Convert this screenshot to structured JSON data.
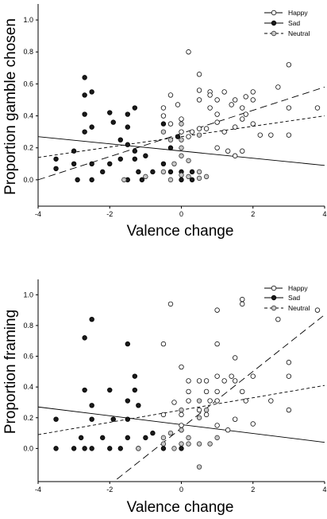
{
  "chart_data": [
    {
      "type": "scatter",
      "xlabel": "Valence change",
      "ylabel": "Proportion gamble chosen",
      "xlim": [
        -4,
        4
      ],
      "ylim": [
        -0.15,
        1.1
      ],
      "xticks": [
        -4,
        -2,
        0,
        2,
        4
      ],
      "yticks": [
        0.0,
        0.2,
        0.4,
        0.6,
        0.8,
        1.0
      ],
      "xtick_labels": [
        "-4",
        "-2",
        "0",
        "2",
        "4"
      ],
      "ytick_labels": [
        "0.0",
        "0.2",
        "0.4",
        "0.6",
        "0.8",
        "1.0"
      ],
      "grid": false,
      "legend_position": "top-right",
      "series": [
        {
          "name": "Happy",
          "marker": "open-circle",
          "color": "#ffffff",
          "line_style": "long-dash",
          "trend": {
            "x": [
              -4,
              4
            ],
            "y": [
              0.0,
              0.58
            ]
          },
          "points": [
            [
              -0.5,
              0.45
            ],
            [
              -0.5,
              0.4
            ],
            [
              -0.3,
              0.53
            ],
            [
              -0.3,
              0.35
            ],
            [
              -0.1,
              0.47
            ],
            [
              0.0,
              0.38
            ],
            [
              0.0,
              0.3
            ],
            [
              0.2,
              0.8
            ],
            [
              0.2,
              0.27
            ],
            [
              0.3,
              0.3
            ],
            [
              0.5,
              0.66
            ],
            [
              0.5,
              0.56
            ],
            [
              0.5,
              0.5
            ],
            [
              0.5,
              0.32
            ],
            [
              0.7,
              0.32
            ],
            [
              0.8,
              0.55
            ],
            [
              0.8,
              0.53
            ],
            [
              0.8,
              0.45
            ],
            [
              1.0,
              0.5
            ],
            [
              1.0,
              0.41
            ],
            [
              1.0,
              0.36
            ],
            [
              1.0,
              0.2
            ],
            [
              1.2,
              0.55
            ],
            [
              1.2,
              0.3
            ],
            [
              1.3,
              0.18
            ],
            [
              1.4,
              0.47
            ],
            [
              1.5,
              0.5
            ],
            [
              1.5,
              0.33
            ],
            [
              1.5,
              0.15
            ],
            [
              1.7,
              0.45
            ],
            [
              1.7,
              0.38
            ],
            [
              1.7,
              0.18
            ],
            [
              1.8,
              0.52
            ],
            [
              1.8,
              0.41
            ],
            [
              2.0,
              0.55
            ],
            [
              2.0,
              0.5
            ],
            [
              2.0,
              0.35
            ],
            [
              2.2,
              0.28
            ],
            [
              2.5,
              0.28
            ],
            [
              2.7,
              0.58
            ],
            [
              3.0,
              0.72
            ],
            [
              3.0,
              0.45
            ],
            [
              3.0,
              0.28
            ],
            [
              3.8,
              0.45
            ]
          ]
        },
        {
          "name": "Sad",
          "marker": "filled-circle",
          "color": "#1a1a1a",
          "line_style": "solid",
          "trend": {
            "x": [
              -4,
              4
            ],
            "y": [
              0.27,
              0.09
            ]
          },
          "points": [
            [
              -3.5,
              0.13
            ],
            [
              -3.5,
              0.07
            ],
            [
              -3.0,
              0.18
            ],
            [
              -3.0,
              0.1
            ],
            [
              -2.9,
              0.0
            ],
            [
              -2.7,
              0.64
            ],
            [
              -2.7,
              0.53
            ],
            [
              -2.7,
              0.41
            ],
            [
              -2.7,
              0.3
            ],
            [
              -2.5,
              0.55
            ],
            [
              -2.5,
              0.33
            ],
            [
              -2.5,
              0.1
            ],
            [
              -2.5,
              0.0
            ],
            [
              -2.2,
              0.05
            ],
            [
              -2.0,
              0.42
            ],
            [
              -2.0,
              0.1
            ],
            [
              -1.9,
              0.36
            ],
            [
              -1.7,
              0.25
            ],
            [
              -1.7,
              0.13
            ],
            [
              -1.5,
              0.41
            ],
            [
              -1.5,
              0.33
            ],
            [
              -1.5,
              0.22
            ],
            [
              -1.5,
              0.0
            ],
            [
              -1.3,
              0.45
            ],
            [
              -1.3,
              0.18
            ],
            [
              -1.3,
              0.13
            ],
            [
              -1.2,
              0.05
            ],
            [
              -1.1,
              0.0
            ],
            [
              -1.0,
              0.15
            ],
            [
              -0.8,
              0.05
            ],
            [
              -0.5,
              0.35
            ],
            [
              -0.5,
              0.1
            ],
            [
              -0.3,
              0.2
            ],
            [
              -0.3,
              0.05
            ],
            [
              -0.1,
              0.27
            ],
            [
              0.0,
              0.05
            ],
            [
              0.0,
              0.0
            ],
            [
              0.3,
              0.05
            ],
            [
              0.3,
              0.0
            ]
          ]
        },
        {
          "name": "Neutral",
          "marker": "gray-circle",
          "color": "#c8c8c8",
          "line_style": "short-dash",
          "trend": {
            "x": [
              -4,
              4
            ],
            "y": [
              0.14,
              0.4
            ]
          },
          "points": [
            [
              -1.6,
              0.0
            ],
            [
              -1.0,
              0.02
            ],
            [
              -0.5,
              0.3
            ],
            [
              -0.5,
              0.05
            ],
            [
              -0.3,
              0.25
            ],
            [
              -0.3,
              0.0
            ],
            [
              -0.2,
              0.1
            ],
            [
              0.0,
              0.35
            ],
            [
              0.0,
              0.25
            ],
            [
              0.0,
              0.2
            ],
            [
              0.0,
              0.15
            ],
            [
              0.0,
              0.03
            ],
            [
              0.2,
              0.12
            ],
            [
              0.2,
              0.02
            ],
            [
              0.5,
              0.28
            ],
            [
              0.5,
              0.05
            ],
            [
              0.5,
              0.01
            ],
            [
              0.7,
              0.02
            ]
          ]
        }
      ]
    },
    {
      "type": "scatter",
      "xlabel": "Valence change",
      "ylabel": "Proportion framing",
      "xlim": [
        -4,
        4
      ],
      "ylim": [
        -0.2,
        1.1
      ],
      "xticks": [
        -4,
        -2,
        0,
        2,
        4
      ],
      "yticks": [
        0.0,
        0.2,
        0.4,
        0.6,
        0.8,
        1.0
      ],
      "xtick_labels": [
        "-4",
        "-2",
        "0",
        "2",
        "4"
      ],
      "ytick_labels": [
        "0.0",
        "0.2",
        "0.4",
        "0.6",
        "0.8",
        "1.0"
      ],
      "grid": false,
      "legend_position": "top-right",
      "series": [
        {
          "name": "Happy",
          "marker": "open-circle",
          "color": "#ffffff",
          "line_style": "long-dash",
          "trend": {
            "x": [
              -1.8,
              4
            ],
            "y": [
              -0.2,
              0.87
            ]
          },
          "points": [
            [
              -0.5,
              0.68
            ],
            [
              -0.5,
              0.22
            ],
            [
              -0.3,
              0.94
            ],
            [
              -0.2,
              0.3
            ],
            [
              0.0,
              0.53
            ],
            [
              0.0,
              0.22
            ],
            [
              0.0,
              0.15
            ],
            [
              0.2,
              0.44
            ],
            [
              0.2,
              0.37
            ],
            [
              0.2,
              0.31
            ],
            [
              0.5,
              0.44
            ],
            [
              0.5,
              0.25
            ],
            [
              0.7,
              0.44
            ],
            [
              0.7,
              0.37
            ],
            [
              0.7,
              0.22
            ],
            [
              0.8,
              0.31
            ],
            [
              1.0,
              0.9
            ],
            [
              1.0,
              0.68
            ],
            [
              1.0,
              0.47
            ],
            [
              1.0,
              0.37
            ],
            [
              1.0,
              0.31
            ],
            [
              1.0,
              0.15
            ],
            [
              1.2,
              0.44
            ],
            [
              1.3,
              0.12
            ],
            [
              1.4,
              0.47
            ],
            [
              1.5,
              0.59
            ],
            [
              1.5,
              0.44
            ],
            [
              1.5,
              0.19
            ],
            [
              1.7,
              0.97
            ],
            [
              1.7,
              0.94
            ],
            [
              1.7,
              0.37
            ],
            [
              1.8,
              0.31
            ],
            [
              2.0,
              0.47
            ],
            [
              2.0,
              0.16
            ],
            [
              2.5,
              0.31
            ],
            [
              2.7,
              0.84
            ],
            [
              3.0,
              0.56
            ],
            [
              3.0,
              0.47
            ],
            [
              3.0,
              0.25
            ],
            [
              3.8,
              0.9
            ]
          ]
        },
        {
          "name": "Sad",
          "marker": "filled-circle",
          "color": "#1a1a1a",
          "line_style": "solid",
          "trend": {
            "x": [
              -4,
              4
            ],
            "y": [
              0.27,
              0.04
            ]
          },
          "points": [
            [
              -3.5,
              0.19
            ],
            [
              -3.5,
              0.0
            ],
            [
              -3.0,
              0.0
            ],
            [
              -2.8,
              0.07
            ],
            [
              -2.7,
              0.72
            ],
            [
              -2.7,
              0.38
            ],
            [
              -2.7,
              0.0
            ],
            [
              -2.5,
              0.84
            ],
            [
              -2.5,
              0.28
            ],
            [
              -2.5,
              0.19
            ],
            [
              -2.5,
              0.0
            ],
            [
              -2.2,
              0.07
            ],
            [
              -2.0,
              0.38
            ],
            [
              -2.0,
              0.0
            ],
            [
              -1.9,
              0.19
            ],
            [
              -1.7,
              0.0
            ],
            [
              -1.5,
              0.68
            ],
            [
              -1.5,
              0.31
            ],
            [
              -1.5,
              0.19
            ],
            [
              -1.5,
              0.07
            ],
            [
              -1.3,
              0.47
            ],
            [
              -1.3,
              0.38
            ],
            [
              -1.2,
              0.28
            ],
            [
              -1.2,
              0.0
            ],
            [
              -1.0,
              0.07
            ],
            [
              -0.8,
              0.1
            ],
            [
              -0.5,
              0.0
            ],
            [
              0.0,
              0.12
            ],
            [
              0.0,
              0.0
            ]
          ]
        },
        {
          "name": "Neutral",
          "marker": "gray-circle",
          "color": "#c8c8c8",
          "line_style": "short-dash",
          "trend": {
            "x": [
              -4,
              4
            ],
            "y": [
              0.09,
              0.41
            ]
          },
          "points": [
            [
              -1.2,
              0.0
            ],
            [
              -0.5,
              0.07
            ],
            [
              -0.5,
              0.03
            ],
            [
              -0.3,
              0.1
            ],
            [
              -0.2,
              0.0
            ],
            [
              0.0,
              0.25
            ],
            [
              0.0,
              0.12
            ],
            [
              0.0,
              0.03
            ],
            [
              0.2,
              0.07
            ],
            [
              0.2,
              0.03
            ],
            [
              0.5,
              0.31
            ],
            [
              0.5,
              0.2
            ],
            [
              0.5,
              0.03
            ],
            [
              0.5,
              -0.12
            ],
            [
              0.7,
              0.25
            ],
            [
              0.8,
              0.03
            ],
            [
              1.0,
              0.07
            ]
          ]
        }
      ]
    }
  ]
}
